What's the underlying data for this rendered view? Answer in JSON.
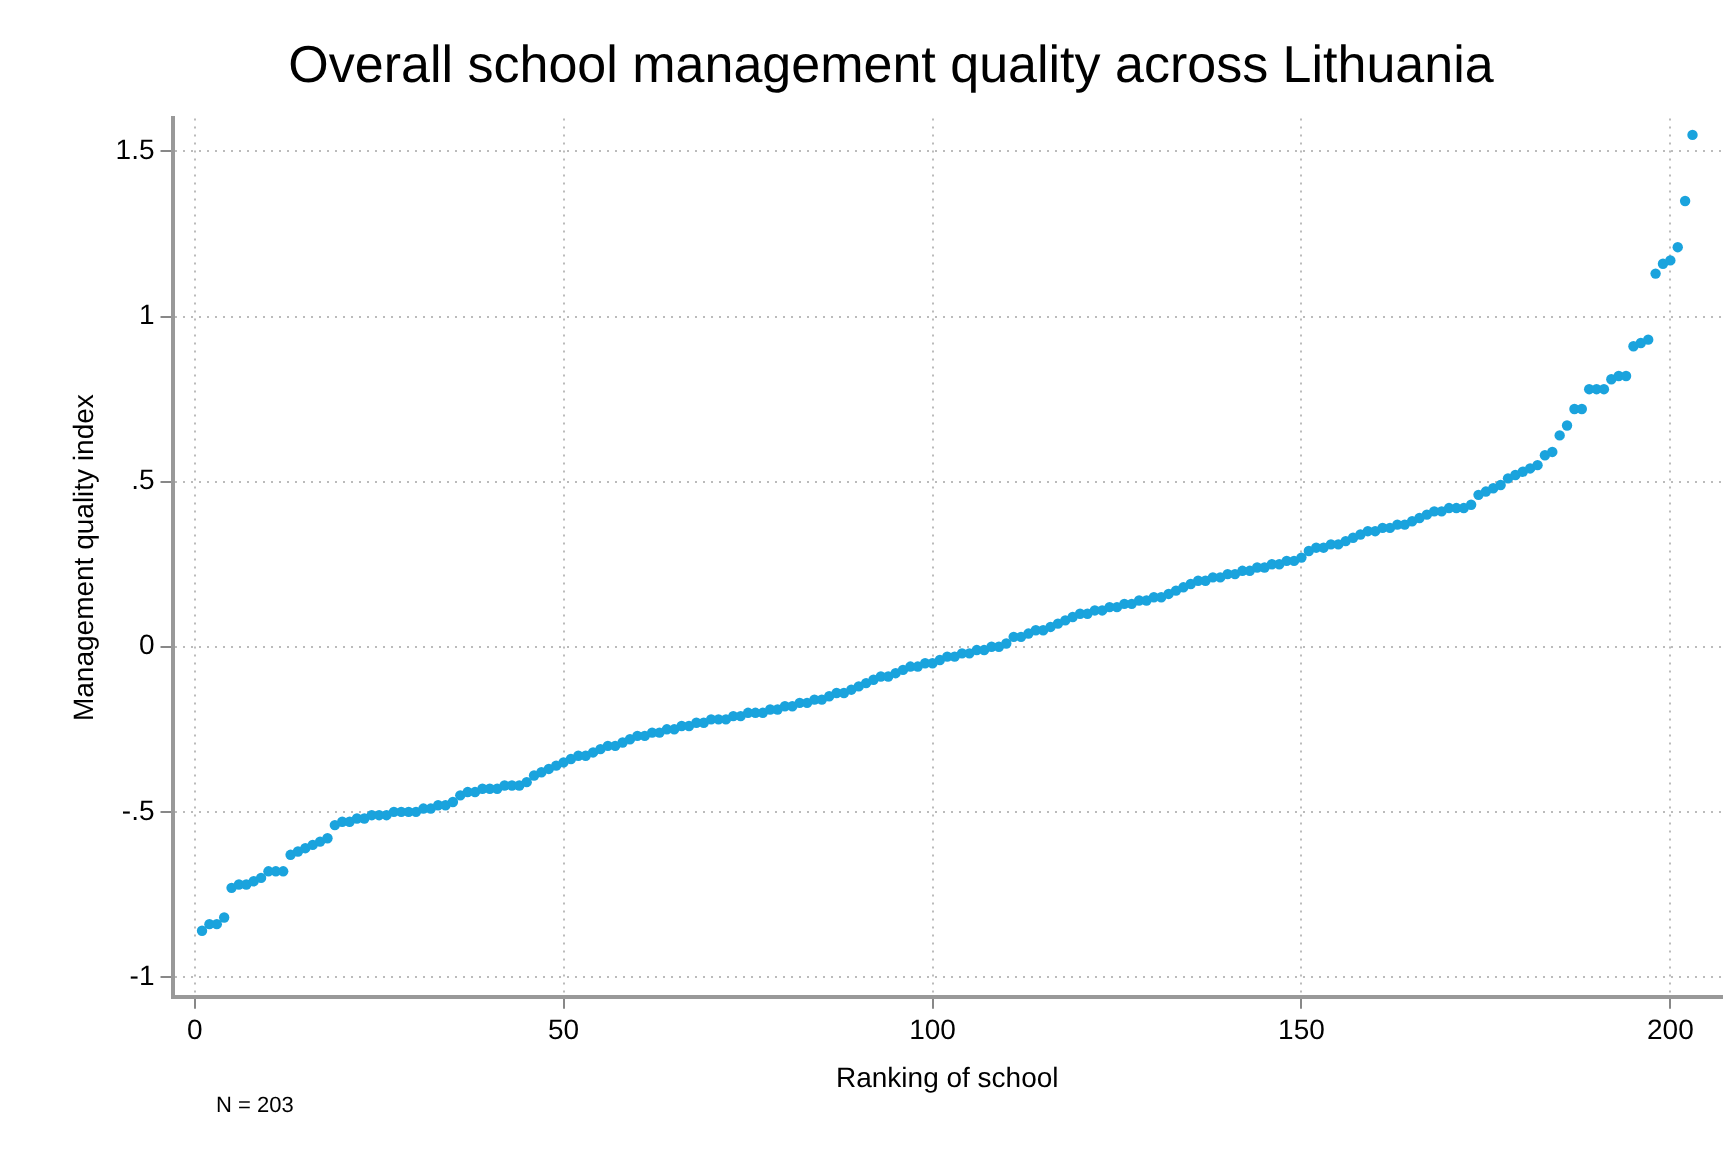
{
  "chart_data": {
    "type": "scatter",
    "title": "Overall school management quality across Lithuania",
    "xlabel": "Ranking of school",
    "ylabel": "Management quality index",
    "annotations": [
      "N = 203"
    ],
    "x": [
      1,
      2,
      3,
      4,
      5,
      6,
      7,
      8,
      9,
      10,
      11,
      12,
      13,
      14,
      15,
      16,
      17,
      18,
      19,
      20,
      21,
      22,
      23,
      24,
      25,
      26,
      27,
      28,
      29,
      30,
      31,
      32,
      33,
      34,
      35,
      36,
      37,
      38,
      39,
      40,
      41,
      42,
      43,
      44,
      45,
      46,
      47,
      48,
      49,
      50,
      51,
      52,
      53,
      54,
      55,
      56,
      57,
      58,
      59,
      60,
      61,
      62,
      63,
      64,
      65,
      66,
      67,
      68,
      69,
      70,
      71,
      72,
      73,
      74,
      75,
      76,
      77,
      78,
      79,
      80,
      81,
      82,
      83,
      84,
      85,
      86,
      87,
      88,
      89,
      90,
      91,
      92,
      93,
      94,
      95,
      96,
      97,
      98,
      99,
      100,
      101,
      102,
      103,
      104,
      105,
      106,
      107,
      108,
      109,
      110,
      111,
      112,
      113,
      114,
      115,
      116,
      117,
      118,
      119,
      120,
      121,
      122,
      123,
      124,
      125,
      126,
      127,
      128,
      129,
      130,
      131,
      132,
      133,
      134,
      135,
      136,
      137,
      138,
      139,
      140,
      141,
      142,
      143,
      144,
      145,
      146,
      147,
      148,
      149,
      150,
      151,
      152,
      153,
      154,
      155,
      156,
      157,
      158,
      159,
      160,
      161,
      162,
      163,
      164,
      165,
      166,
      167,
      168,
      169,
      170,
      171,
      172,
      173,
      174,
      175,
      176,
      177,
      178,
      179,
      180,
      181,
      182,
      183,
      184,
      185,
      186,
      187,
      188,
      189,
      190,
      191,
      192,
      193,
      194,
      195,
      196,
      197,
      198,
      199,
      200,
      201,
      202,
      203
    ],
    "series": [
      {
        "color": "#1aa3dd",
        "values": [
          -0.86,
          -0.84,
          -0.84,
          -0.82,
          -0.73,
          -0.72,
          -0.72,
          -0.71,
          -0.7,
          -0.68,
          -0.68,
          -0.68,
          -0.63,
          -0.62,
          -0.61,
          -0.6,
          -0.59,
          -0.58,
          -0.54,
          -0.53,
          -0.53,
          -0.52,
          -0.52,
          -0.51,
          -0.51,
          -0.51,
          -0.5,
          -0.5,
          -0.5,
          -0.5,
          -0.49,
          -0.49,
          -0.48,
          -0.48,
          -0.47,
          -0.45,
          -0.44,
          -0.44,
          -0.43,
          -0.43,
          -0.43,
          -0.42,
          -0.42,
          -0.42,
          -0.41,
          -0.39,
          -0.38,
          -0.37,
          -0.36,
          -0.35,
          -0.34,
          -0.33,
          -0.33,
          -0.32,
          -0.31,
          -0.3,
          -0.3,
          -0.29,
          -0.28,
          -0.27,
          -0.27,
          -0.26,
          -0.26,
          -0.25,
          -0.25,
          -0.24,
          -0.24,
          -0.23,
          -0.23,
          -0.22,
          -0.22,
          -0.22,
          -0.21,
          -0.21,
          -0.2,
          -0.2,
          -0.2,
          -0.19,
          -0.19,
          -0.18,
          -0.18,
          -0.17,
          -0.17,
          -0.16,
          -0.16,
          -0.15,
          -0.14,
          -0.14,
          -0.13,
          -0.12,
          -0.11,
          -0.1,
          -0.09,
          -0.09,
          -0.08,
          -0.07,
          -0.06,
          -0.06,
          -0.05,
          -0.05,
          -0.04,
          -0.03,
          -0.03,
          -0.02,
          -0.02,
          -0.01,
          -0.01,
          0,
          0,
          0.01,
          0.03,
          0.03,
          0.04,
          0.05,
          0.05,
          0.06,
          0.07,
          0.08,
          0.09,
          0.1,
          0.1,
          0.11,
          0.11,
          0.12,
          0.12,
          0.13,
          0.13,
          0.14,
          0.14,
          0.15,
          0.15,
          0.16,
          0.17,
          0.18,
          0.19,
          0.2,
          0.2,
          0.21,
          0.21,
          0.22,
          0.22,
          0.23,
          0.23,
          0.24,
          0.24,
          0.25,
          0.25,
          0.26,
          0.26,
          0.27,
          0.29,
          0.3,
          0.3,
          0.31,
          0.31,
          0.32,
          0.33,
          0.34,
          0.35,
          0.35,
          0.36,
          0.36,
          0.37,
          0.37,
          0.38,
          0.39,
          0.4,
          0.41,
          0.41,
          0.42,
          0.42,
          0.42,
          0.43,
          0.46,
          0.47,
          0.48,
          0.49,
          0.51,
          0.52,
          0.53,
          0.54,
          0.55,
          0.58,
          0.59,
          0.64,
          0.67,
          0.72,
          0.72,
          0.78,
          0.78,
          0.78,
          0.81,
          0.82,
          0.82,
          0.91,
          0.92,
          0.93,
          1.13,
          1.16,
          1.17,
          1.21,
          1.35,
          1.55
        ]
      }
    ],
    "xlim": [
      -3,
      207
    ],
    "xticks": [
      0,
      50,
      100,
      150,
      200
    ],
    "ylim": [
      -1.06,
      1.6
    ],
    "yticks": [
      {
        "value": -1,
        "label": "-1"
      },
      {
        "value": -0.5,
        "label": "-.5"
      },
      0,
      {
        "value": 0.5,
        "label": ".5"
      },
      1,
      1.5
    ],
    "grid": true,
    "legend": false,
    "marker": "circle"
  }
}
